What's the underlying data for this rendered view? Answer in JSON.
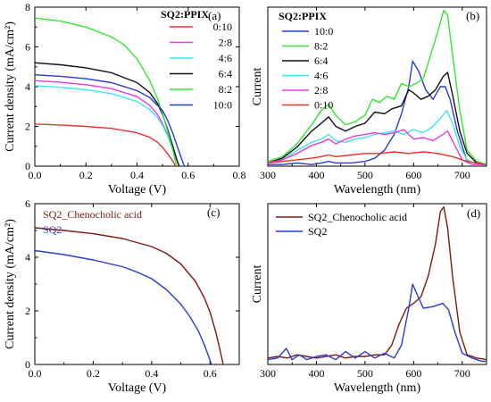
{
  "chart_data": [
    {
      "panel": "(a)",
      "type": "line",
      "xlabel": "Voltage (V)",
      "ylabel": "Current density (mA/cm²)",
      "xlim": [
        0,
        0.8
      ],
      "ylim": [
        0,
        8
      ],
      "xticks": [
        "0.0",
        "0.2",
        "0.4",
        "0.6",
        "0.8"
      ],
      "yticks": [
        "0",
        "2",
        "4",
        "6",
        "8"
      ],
      "legend_title": "SQ2:PPIX",
      "legend_position": "right",
      "series": [
        {
          "name": "0:10",
          "color": "#e8322a",
          "x": [
            0,
            0.1,
            0.2,
            0.3,
            0.4,
            0.45,
            0.48,
            0.5,
            0.52,
            0.535,
            0.545,
            0.55
          ],
          "y": [
            2.12,
            2.07,
            2.0,
            1.9,
            1.68,
            1.45,
            1.2,
            0.95,
            0.62,
            0.35,
            0.15,
            0
          ]
        },
        {
          "name": "2:8",
          "color": "#e83ae0",
          "x": [
            0,
            0.1,
            0.2,
            0.3,
            0.4,
            0.45,
            0.48,
            0.5,
            0.52,
            0.54,
            0.555,
            0.565
          ],
          "y": [
            4.3,
            4.22,
            4.1,
            3.9,
            3.5,
            3.05,
            2.6,
            2.15,
            1.55,
            0.85,
            0.3,
            0
          ]
        },
        {
          "name": "4:6",
          "color": "#3ee6f0",
          "x": [
            0,
            0.1,
            0.2,
            0.3,
            0.4,
            0.45,
            0.48,
            0.5,
            0.52,
            0.54,
            0.555,
            0.565
          ],
          "y": [
            4.05,
            3.97,
            3.85,
            3.65,
            3.25,
            2.85,
            2.45,
            2.05,
            1.5,
            0.85,
            0.3,
            0
          ]
        },
        {
          "name": "6:4",
          "color": "#111111",
          "x": [
            0,
            0.1,
            0.2,
            0.3,
            0.4,
            0.45,
            0.48,
            0.5,
            0.52,
            0.54,
            0.555,
            0.565
          ],
          "y": [
            5.2,
            5.1,
            4.95,
            4.7,
            4.2,
            3.7,
            3.15,
            2.6,
            1.85,
            1.0,
            0.35,
            0
          ]
        },
        {
          "name": "8:2",
          "color": "#33e633",
          "x": [
            0,
            0.1,
            0.2,
            0.3,
            0.35,
            0.4,
            0.45,
            0.48,
            0.5,
            0.52,
            0.54,
            0.555
          ],
          "y": [
            7.45,
            7.3,
            7.0,
            6.5,
            6.1,
            5.4,
            4.3,
            3.4,
            2.65,
            1.75,
            0.8,
            0
          ]
        },
        {
          "name": "10:0",
          "color": "#2a3ad8",
          "x": [
            0,
            0.1,
            0.2,
            0.3,
            0.4,
            0.45,
            0.5,
            0.52,
            0.54,
            0.56,
            0.575,
            0.585
          ],
          "y": [
            4.6,
            4.52,
            4.4,
            4.2,
            3.8,
            3.45,
            2.8,
            2.3,
            1.65,
            0.9,
            0.35,
            0
          ]
        }
      ]
    },
    {
      "panel": "(b)",
      "type": "line",
      "xlabel": "Wavelength (nm)",
      "ylabel": "Current",
      "xlim": [
        300,
        750
      ],
      "ylim": [
        0,
        1
      ],
      "xticks": [
        "300",
        "400",
        "500",
        "600",
        "700"
      ],
      "legend_title": "SQ2:PPIX",
      "legend_position": "top-left",
      "series": [
        {
          "name": "10:0",
          "color": "#2a3ad8",
          "x": [
            300,
            330,
            360,
            390,
            410,
            425,
            440,
            470,
            500,
            520,
            540,
            560,
            575,
            590,
            598,
            610,
            625,
            640,
            655,
            665,
            675,
            690,
            710,
            750
          ],
          "y": [
            0.01,
            0.01,
            0.02,
            0.01,
            0.02,
            0.03,
            0.02,
            0.02,
            0.03,
            0.05,
            0.1,
            0.2,
            0.33,
            0.5,
            0.66,
            0.6,
            0.48,
            0.42,
            0.5,
            0.5,
            0.42,
            0.22,
            0.03,
            0.01
          ]
        },
        {
          "name": "8:2",
          "color": "#33e633",
          "x": [
            300,
            330,
            360,
            390,
            410,
            425,
            440,
            460,
            480,
            500,
            515,
            530,
            545,
            560,
            575,
            590,
            605,
            620,
            635,
            650,
            662,
            670,
            680,
            695,
            710,
            730,
            750
          ],
          "y": [
            0.03,
            0.06,
            0.14,
            0.26,
            0.35,
            0.39,
            0.32,
            0.26,
            0.28,
            0.32,
            0.42,
            0.4,
            0.44,
            0.42,
            0.52,
            0.5,
            0.52,
            0.55,
            0.7,
            0.85,
            0.98,
            0.95,
            0.7,
            0.35,
            0.1,
            0.03,
            0.01
          ]
        },
        {
          "name": "6:4",
          "color": "#111111",
          "x": [
            300,
            330,
            360,
            390,
            410,
            425,
            440,
            460,
            480,
            500,
            520,
            540,
            555,
            575,
            590,
            600,
            615,
            630,
            645,
            660,
            670,
            680,
            695,
            710,
            730,
            750
          ],
          "y": [
            0.02,
            0.05,
            0.12,
            0.22,
            0.27,
            0.31,
            0.25,
            0.22,
            0.25,
            0.27,
            0.34,
            0.33,
            0.36,
            0.38,
            0.48,
            0.46,
            0.42,
            0.44,
            0.48,
            0.56,
            0.59,
            0.45,
            0.22,
            0.08,
            0.02,
            0.01
          ]
        },
        {
          "name": "4:6",
          "color": "#3ee6f0",
          "x": [
            300,
            330,
            360,
            390,
            410,
            425,
            440,
            460,
            480,
            500,
            520,
            540,
            560,
            580,
            600,
            620,
            640,
            655,
            668,
            680,
            695,
            710,
            730,
            750
          ],
          "y": [
            0.02,
            0.04,
            0.1,
            0.15,
            0.17,
            0.2,
            0.16,
            0.15,
            0.17,
            0.18,
            0.2,
            0.21,
            0.22,
            0.2,
            0.23,
            0.21,
            0.25,
            0.3,
            0.35,
            0.27,
            0.12,
            0.04,
            0.01,
            0.01
          ]
        },
        {
          "name": "2:8",
          "color": "#e83ae0",
          "x": [
            300,
            330,
            360,
            390,
            410,
            425,
            440,
            460,
            480,
            500,
            520,
            540,
            560,
            580,
            600,
            620,
            640,
            660,
            670,
            685,
            700,
            720,
            750
          ],
          "y": [
            0.02,
            0.04,
            0.08,
            0.13,
            0.15,
            0.17,
            0.14,
            0.17,
            0.19,
            0.2,
            0.21,
            0.2,
            0.21,
            0.23,
            0.17,
            0.18,
            0.16,
            0.2,
            0.22,
            0.13,
            0.04,
            0.01,
            0.01
          ]
        },
        {
          "name": "0:10",
          "color": "#e8322a",
          "x": [
            300,
            330,
            360,
            390,
            410,
            425,
            440,
            470,
            500,
            530,
            560,
            590,
            620,
            650,
            680,
            710,
            750
          ],
          "y": [
            0.02,
            0.03,
            0.04,
            0.05,
            0.06,
            0.07,
            0.06,
            0.07,
            0.08,
            0.08,
            0.09,
            0.08,
            0.09,
            0.08,
            0.06,
            0.03,
            0.01
          ]
        }
      ]
    },
    {
      "panel": "(c)",
      "type": "line",
      "xlabel": "Voltage (V)",
      "ylabel": "Current density (mA/cm²)",
      "xlim": [
        0,
        0.7
      ],
      "ylim": [
        0,
        6
      ],
      "xticks": [
        "0.0",
        "0.2",
        "0.4",
        "0.6"
      ],
      "yticks": [
        "0",
        "2",
        "4",
        "6"
      ],
      "legend_position": "top-left",
      "series": [
        {
          "name": "SQ2_Chenocholic acid",
          "color": "#7a1a14",
          "x": [
            0,
            0.1,
            0.2,
            0.3,
            0.4,
            0.45,
            0.5,
            0.55,
            0.58,
            0.6,
            0.62,
            0.635,
            0.645
          ],
          "y": [
            5.1,
            5.0,
            4.88,
            4.7,
            4.4,
            4.15,
            3.75,
            3.1,
            2.5,
            1.95,
            1.2,
            0.5,
            0
          ]
        },
        {
          "name": "SQ2",
          "color": "#2a3ad8",
          "x": [
            0,
            0.1,
            0.2,
            0.3,
            0.35,
            0.4,
            0.45,
            0.5,
            0.53,
            0.56,
            0.58,
            0.595,
            0.605
          ],
          "y": [
            4.25,
            4.1,
            3.9,
            3.65,
            3.45,
            3.2,
            2.8,
            2.25,
            1.8,
            1.25,
            0.75,
            0.3,
            0
          ]
        }
      ]
    },
    {
      "panel": "(d)",
      "type": "line",
      "xlabel": "Wavelength (nm)",
      "ylabel": "Current",
      "xlim": [
        300,
        750
      ],
      "ylim": [
        0,
        1
      ],
      "xticks": [
        "300",
        "400",
        "500",
        "600",
        "700"
      ],
      "legend_position": "top-left",
      "series": [
        {
          "name": "SQ2_Chenocholic acid",
          "color": "#7a1a14",
          "x": [
            300,
            320,
            340,
            360,
            380,
            400,
            420,
            440,
            460,
            480,
            500,
            520,
            540,
            555,
            570,
            585,
            600,
            615,
            630,
            645,
            655,
            662,
            670,
            680,
            695,
            710,
            730,
            750
          ],
          "y": [
            0.04,
            0.05,
            0.04,
            0.06,
            0.05,
            0.04,
            0.05,
            0.06,
            0.04,
            0.05,
            0.05,
            0.06,
            0.06,
            0.12,
            0.25,
            0.35,
            0.38,
            0.42,
            0.55,
            0.75,
            0.95,
            0.98,
            0.85,
            0.55,
            0.2,
            0.06,
            0.04,
            0.03
          ]
        },
        {
          "name": "SQ2",
          "color": "#2a3ad8",
          "x": [
            300,
            320,
            338,
            350,
            365,
            380,
            400,
            420,
            440,
            460,
            480,
            500,
            520,
            540,
            560,
            575,
            590,
            598,
            608,
            620,
            640,
            660,
            672,
            685,
            700,
            720,
            740,
            750
          ],
          "y": [
            0.03,
            0.04,
            0.1,
            0.03,
            0.06,
            0.03,
            0.05,
            0.06,
            0.03,
            0.08,
            0.04,
            0.08,
            0.04,
            0.07,
            0.04,
            0.12,
            0.35,
            0.5,
            0.43,
            0.35,
            0.36,
            0.38,
            0.34,
            0.2,
            0.07,
            0.04,
            0.02,
            0.02
          ]
        }
      ]
    }
  ]
}
